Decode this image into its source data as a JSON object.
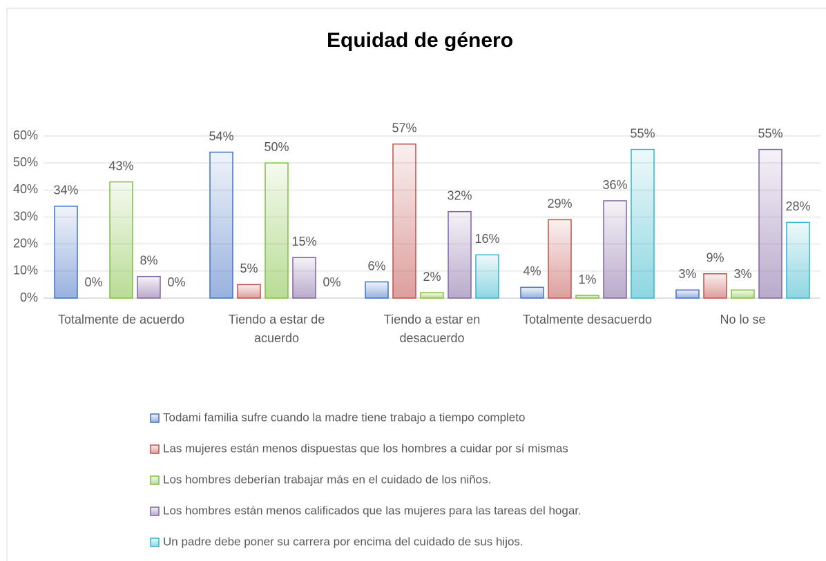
{
  "chart_data": {
    "type": "bar",
    "title": "Equidad de género",
    "categories": [
      "Totalmente de acuerdo",
      "Tiendo a estar de acuerdo",
      "Tiendo a estar en desacuerdo",
      "Totalmente desacuerdo",
      "No lo se"
    ],
    "series": [
      {
        "name": "Todami familia sufre cuando la madre tiene trabajo a tiempo completo",
        "color": "#4472c4",
        "values": [
          34,
          54,
          6,
          4,
          3
        ],
        "value_labels": [
          "34%",
          "54%",
          "6%",
          "4%",
          "3%"
        ]
      },
      {
        "name": "Las mujeres están menos dispuestas que los hombres a cuidar por sí mismas",
        "color": "#c0504d",
        "values": [
          0,
          5,
          57,
          29,
          9
        ],
        "value_labels": [
          "0%",
          "5%",
          "57%",
          "29%",
          "9%"
        ]
      },
      {
        "name": "Los hombres deberían trabajar más en el cuidado de los niños.",
        "color": "#7fbf3f",
        "values": [
          43,
          50,
          2,
          1,
          3
        ],
        "value_labels": [
          "43%",
          "50%",
          "2%",
          "1%",
          "3%"
        ]
      },
      {
        "name": "Los hombres están menos calificados que las mujeres para las tareas del hogar.",
        "color": "#8064a2",
        "values": [
          8,
          15,
          32,
          36,
          55
        ],
        "value_labels": [
          "8%",
          "15%",
          "32%",
          "36%",
          "55%"
        ]
      },
      {
        "name": "Un padre debe poner su carrera por encima del cuidado de sus hijos.",
        "color": "#31b5c9",
        "values": [
          0,
          0,
          16,
          55,
          28
        ],
        "value_labels": [
          "0%",
          "0%",
          "16%",
          "55%",
          "28%"
        ]
      }
    ],
    "ylim": [
      0,
      60
    ],
    "yticks": [
      {
        "value": 0,
        "label": "0%"
      },
      {
        "value": 10,
        "label": "10%"
      },
      {
        "value": 20,
        "label": "20%"
      },
      {
        "value": 30,
        "label": "30%"
      },
      {
        "value": 40,
        "label": "40%"
      },
      {
        "value": 50,
        "label": "50%"
      },
      {
        "value": 60,
        "label": "60%"
      }
    ],
    "grid": true,
    "legend": "bottom"
  }
}
